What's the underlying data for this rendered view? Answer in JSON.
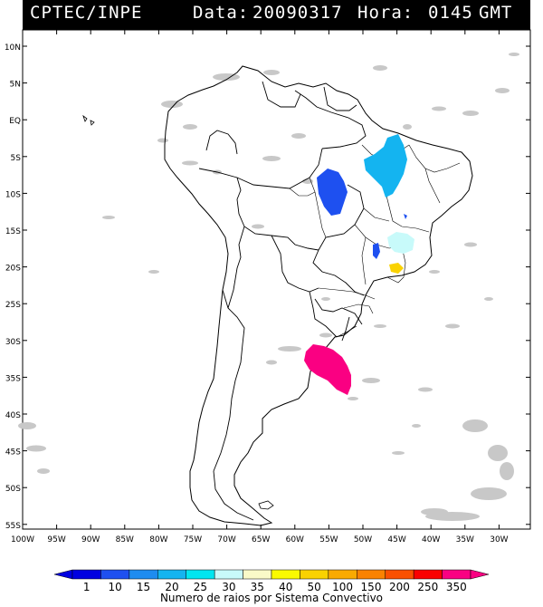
{
  "header": {
    "source": "CPTEC/INPE",
    "date_label": "Data:",
    "date": "20090317",
    "hour_label": "Hora:",
    "hour": "0145",
    "timezone": "GMT"
  },
  "lat_labels": [
    "10N",
    "5N",
    "EQ",
    "5S",
    "10S",
    "15S",
    "20S",
    "25S",
    "30S",
    "35S",
    "40S",
    "45S",
    "50S",
    "55S"
  ],
  "lon_labels": [
    "100W",
    "95W",
    "90W",
    "85W",
    "80W",
    "75W",
    "70W",
    "65W",
    "60W",
    "55W",
    "50W",
    "45W",
    "40W",
    "35W",
    "30W"
  ],
  "legend": {
    "title": "Numero de raios por Sistema Convectivo",
    "values": [
      "1",
      "10",
      "15",
      "20",
      "25",
      "30",
      "35",
      "40",
      "50",
      "100",
      "150",
      "200",
      "250",
      "350"
    ],
    "colors": [
      "#0000e0",
      "#1e50f0",
      "#1e8cf0",
      "#14b4f0",
      "#00e6f0",
      "#c8fafa",
      "#fafac8",
      "#fafa00",
      "#fad200",
      "#faaa00",
      "#fa8200",
      "#fa5000",
      "#fa0000",
      "#fa0082"
    ]
  },
  "colors": {
    "clouds": "#c8c8c8",
    "border": "#000000",
    "background": "#ffffff"
  }
}
